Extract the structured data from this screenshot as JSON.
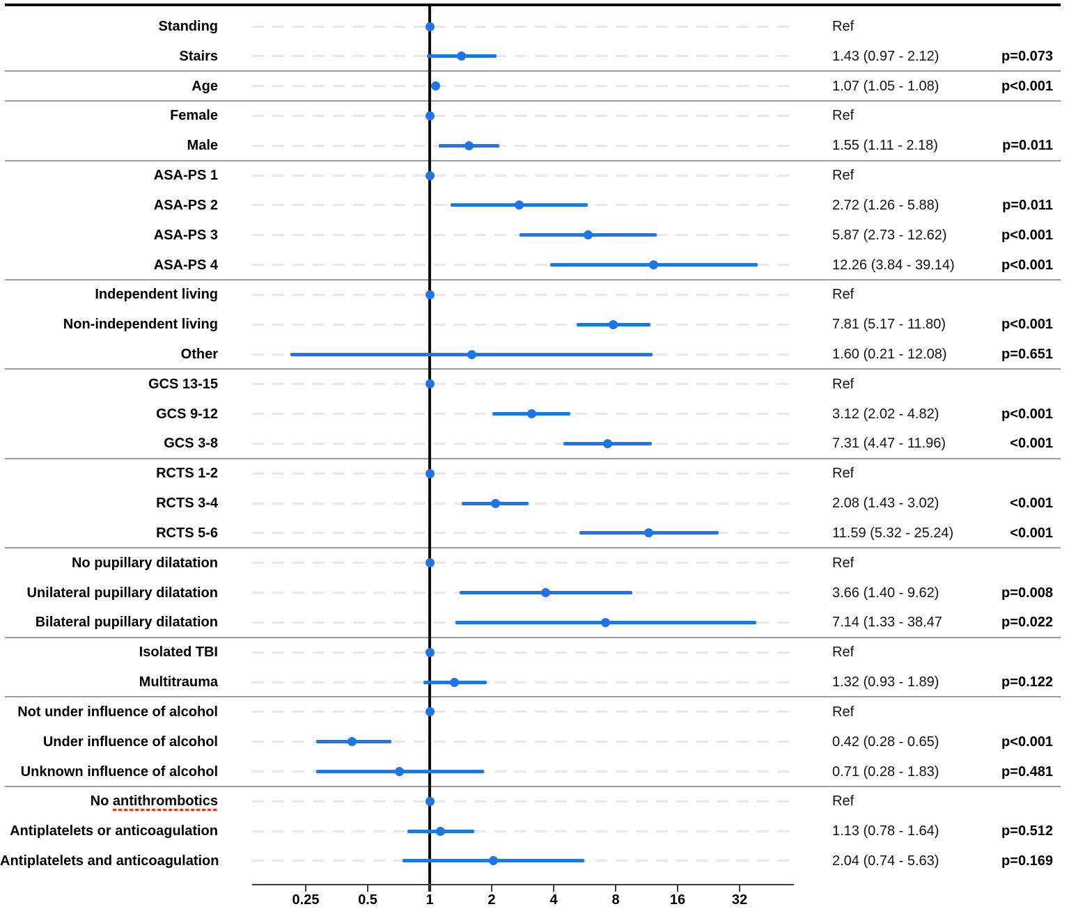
{
  "chart_data": {
    "type": "forest",
    "title": "",
    "xlabel": "",
    "x_axis": {
      "scale": "log2",
      "tick_labels": [
        "0.25",
        "0.5",
        "1",
        "2",
        "4",
        "8",
        "16",
        "32"
      ],
      "tick_values": [
        0.25,
        0.5,
        1,
        2,
        4,
        8,
        16,
        32
      ],
      "range": [
        0.137,
        58.7
      ],
      "reference_value": 1
    },
    "colors": {
      "marker": "#1E76E4",
      "ci_line": "#1E76E4",
      "reference_line": "#0B0B0B",
      "gridline": "#E8E8E8",
      "separator": "#9B9B9B",
      "axis": "#3A3A3A",
      "misspell_underline": "#F0301D"
    },
    "rows": [
      {
        "label": "Standing",
        "value_text": "Ref",
        "p_text": "",
        "estimate": 1,
        "ci_low": null,
        "ci_high": null,
        "ref": true,
        "separator_after": false
      },
      {
        "label": "Stairs",
        "value_text": "1.43 (0.97 - 2.12)",
        "p_text": "p=0.073",
        "estimate": 1.43,
        "ci_low": 0.97,
        "ci_high": 2.12,
        "ref": false,
        "separator_after": true
      },
      {
        "label": "Age",
        "value_text": "1.07 (1.05 - 1.08)",
        "p_text": "p<0.001",
        "estimate": 1.07,
        "ci_low": 1.05,
        "ci_high": 1.08,
        "ref": false,
        "separator_after": true
      },
      {
        "label": "Female",
        "value_text": "Ref",
        "p_text": "",
        "estimate": 1,
        "ci_low": null,
        "ci_high": null,
        "ref": true,
        "separator_after": false
      },
      {
        "label": "Male",
        "value_text": "1.55 (1.11 - 2.18)",
        "p_text": "p=0.011",
        "estimate": 1.55,
        "ci_low": 1.11,
        "ci_high": 2.18,
        "ref": false,
        "separator_after": true
      },
      {
        "label": "ASA-PS 1",
        "value_text": "Ref",
        "p_text": "",
        "estimate": 1,
        "ci_low": null,
        "ci_high": null,
        "ref": true,
        "separator_after": false
      },
      {
        "label": "ASA-PS 2",
        "value_text": "2.72 (1.26 - 5.88)",
        "p_text": "p=0.011",
        "estimate": 2.72,
        "ci_low": 1.26,
        "ci_high": 5.88,
        "ref": false,
        "separator_after": false
      },
      {
        "label": "ASA-PS 3",
        "value_text": "5.87 (2.73 - 12.62)",
        "p_text": "p<0.001",
        "estimate": 5.87,
        "ci_low": 2.73,
        "ci_high": 12.62,
        "ref": false,
        "separator_after": false
      },
      {
        "label": "ASA-PS 4",
        "value_text": "12.26 (3.84 - 39.14)",
        "p_text": "p<0.001",
        "estimate": 12.26,
        "ci_low": 3.84,
        "ci_high": 39.14,
        "ref": false,
        "separator_after": true
      },
      {
        "label": "Independent living",
        "value_text": "Ref",
        "p_text": "",
        "estimate": 1,
        "ci_low": null,
        "ci_high": null,
        "ref": true,
        "separator_after": false
      },
      {
        "label": "Non-independent living",
        "value_text": "7.81 (5.17 - 11.80)",
        "p_text": "p<0.001",
        "estimate": 7.81,
        "ci_low": 5.17,
        "ci_high": 11.8,
        "ref": false,
        "separator_after": false
      },
      {
        "label": "Other",
        "value_text": "1.60 (0.21 - 12.08)",
        "p_text": "p=0.651",
        "estimate": 1.6,
        "ci_low": 0.21,
        "ci_high": 12.08,
        "ref": false,
        "separator_after": true
      },
      {
        "label": "GCS 13-15",
        "value_text": "Ref",
        "p_text": "",
        "estimate": 1,
        "ci_low": null,
        "ci_high": null,
        "ref": true,
        "separator_after": false
      },
      {
        "label": "GCS 9-12",
        "value_text": "3.12 (2.02 - 4.82)",
        "p_text": "p<0.001",
        "estimate": 3.12,
        "ci_low": 2.02,
        "ci_high": 4.82,
        "ref": false,
        "separator_after": false
      },
      {
        "label": "GCS 3-8",
        "value_text": "7.31 (4.47 - 11.96)",
        "p_text": "<0.001",
        "estimate": 7.31,
        "ci_low": 4.47,
        "ci_high": 11.96,
        "ref": false,
        "separator_after": true
      },
      {
        "label": "RCTS 1-2",
        "value_text": "Ref",
        "p_text": "",
        "estimate": 1,
        "ci_low": null,
        "ci_high": null,
        "ref": true,
        "separator_after": false
      },
      {
        "label": "RCTS 3-4",
        "value_text": "2.08 (1.43 - 3.02)",
        "p_text": "<0.001",
        "estimate": 2.08,
        "ci_low": 1.43,
        "ci_high": 3.02,
        "ref": false,
        "separator_after": false
      },
      {
        "label": "RCTS 5-6",
        "value_text": "11.59 (5.32 - 25.24)",
        "p_text": "<0.001",
        "estimate": 11.59,
        "ci_low": 5.32,
        "ci_high": 25.24,
        "ref": false,
        "separator_after": true
      },
      {
        "label": "No pupillary dilatation",
        "value_text": "Ref",
        "p_text": "",
        "estimate": 1,
        "ci_low": null,
        "ci_high": null,
        "ref": true,
        "separator_after": false
      },
      {
        "label": "Unilateral pupillary dilatation",
        "value_text": "3.66 (1.40 - 9.62)",
        "p_text": "p=0.008",
        "estimate": 3.66,
        "ci_low": 1.4,
        "ci_high": 9.62,
        "ref": false,
        "separator_after": false
      },
      {
        "label": "Bilateral pupillary dilatation",
        "value_text": "7.14 (1.33 - 38.47",
        "p_text": "p=0.022",
        "estimate": 7.14,
        "ci_low": 1.33,
        "ci_high": 38.47,
        "ref": false,
        "separator_after": true
      },
      {
        "label": "Isolated TBI",
        "value_text": "Ref",
        "p_text": "",
        "estimate": 1,
        "ci_low": null,
        "ci_high": null,
        "ref": true,
        "separator_after": false
      },
      {
        "label": "Multitrauma",
        "value_text": "1.32 (0.93 - 1.89)",
        "p_text": "p=0.122",
        "estimate": 1.32,
        "ci_low": 0.93,
        "ci_high": 1.89,
        "ref": false,
        "separator_after": true
      },
      {
        "label": "Not under influence of alcohol",
        "value_text": "Ref",
        "p_text": "",
        "estimate": 1,
        "ci_low": null,
        "ci_high": null,
        "ref": true,
        "separator_after": false
      },
      {
        "label": "Under influence of alcohol",
        "value_text": "0.42 (0.28 - 0.65)",
        "p_text": "p<0.001",
        "estimate": 0.42,
        "ci_low": 0.28,
        "ci_high": 0.65,
        "ref": false,
        "separator_after": false
      },
      {
        "label": "Unknown influence of alcohol",
        "value_text": "0.71 (0.28 - 1.83)",
        "p_text": "p=0.481",
        "estimate": 0.71,
        "ci_low": 0.28,
        "ci_high": 1.83,
        "ref": false,
        "separator_after": true
      },
      {
        "label": "No antithrombotics",
        "value_text": "Ref",
        "p_text": "",
        "estimate": 1,
        "ci_low": null,
        "ci_high": null,
        "ref": true,
        "separator_after": false,
        "underline_word": "antithrombotics"
      },
      {
        "label": "Antiplatelets or anticoagulation",
        "value_text": "1.13 (0.78 - 1.64)",
        "p_text": "p=0.512",
        "estimate": 1.13,
        "ci_low": 0.78,
        "ci_high": 1.64,
        "ref": false,
        "separator_after": false
      },
      {
        "label": "Antiplatelets and anticoagulation",
        "value_text": "2.04 (0.74 - 5.63)",
        "p_text": "p=0.169",
        "estimate": 2.04,
        "ci_low": 0.74,
        "ci_high": 5.63,
        "ref": false,
        "separator_after": false
      }
    ]
  }
}
